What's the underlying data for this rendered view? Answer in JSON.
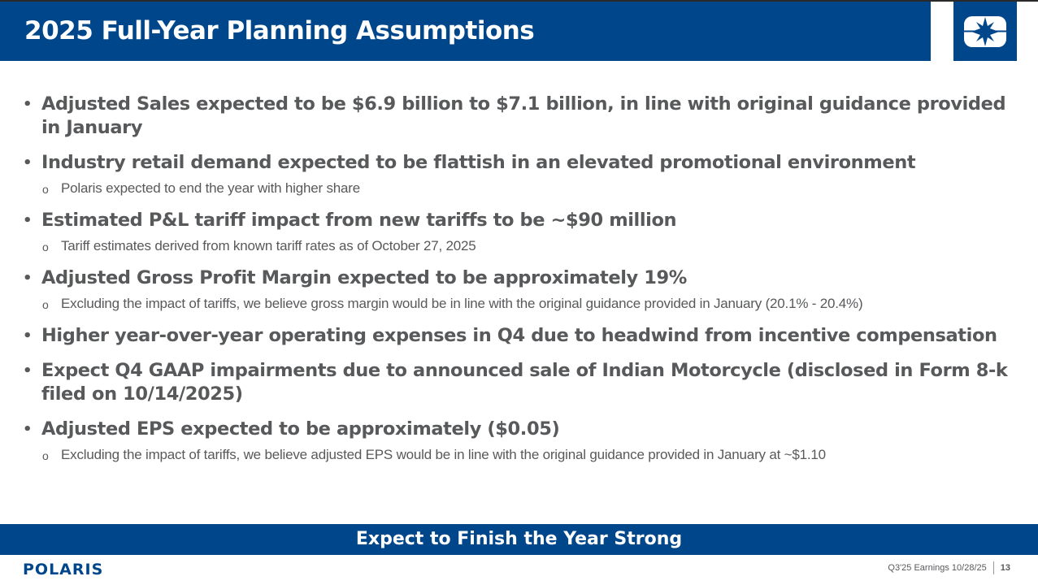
{
  "header": {
    "title": "2025 Full-Year Planning Assumptions",
    "logo_icon": "polaris-star-icon"
  },
  "bullets": [
    {
      "text": "Adjusted Sales expected to be $6.9 billion to $7.1 billion, in line with original guidance provided in January",
      "subs": []
    },
    {
      "text": "Industry retail demand expected to be flattish in an elevated promotional environment",
      "subs": [
        "Polaris expected to end the year with higher share"
      ]
    },
    {
      "text": "Estimated P&L tariff impact from new tariffs to be ~$90 million",
      "subs": [
        "Tariff estimates derived from known tariff rates as of October 27, 2025"
      ]
    },
    {
      "text": "Adjusted Gross Profit Margin expected to be approximately 19%",
      "subs": [
        "Excluding the impact of tariffs, we believe gross margin would be in line with the original guidance provided in January (20.1% - 20.4%)"
      ]
    },
    {
      "text": "Higher year-over-year operating expenses in Q4 due to headwind from incentive compensation",
      "subs": []
    },
    {
      "text": "Expect Q4 GAAP impairments due to announced sale of Indian Motorcycle (disclosed in Form 8-k filed on 10/14/2025)",
      "subs": []
    },
    {
      "text": "Adjusted EPS expected to be approximately ($0.05)",
      "subs": [
        "Excluding the impact of tariffs, we believe adjusted EPS would be in line with the original guidance provided in January at ~$1.10"
      ]
    }
  ],
  "banner": "Expect to Finish the Year Strong",
  "footer": {
    "brand": "POLARIS",
    "caption": "Q3'25 Earnings 10/28/25",
    "page": "13"
  },
  "colors": {
    "brand_blue": "#00468b",
    "text_gray": "#58595b"
  }
}
